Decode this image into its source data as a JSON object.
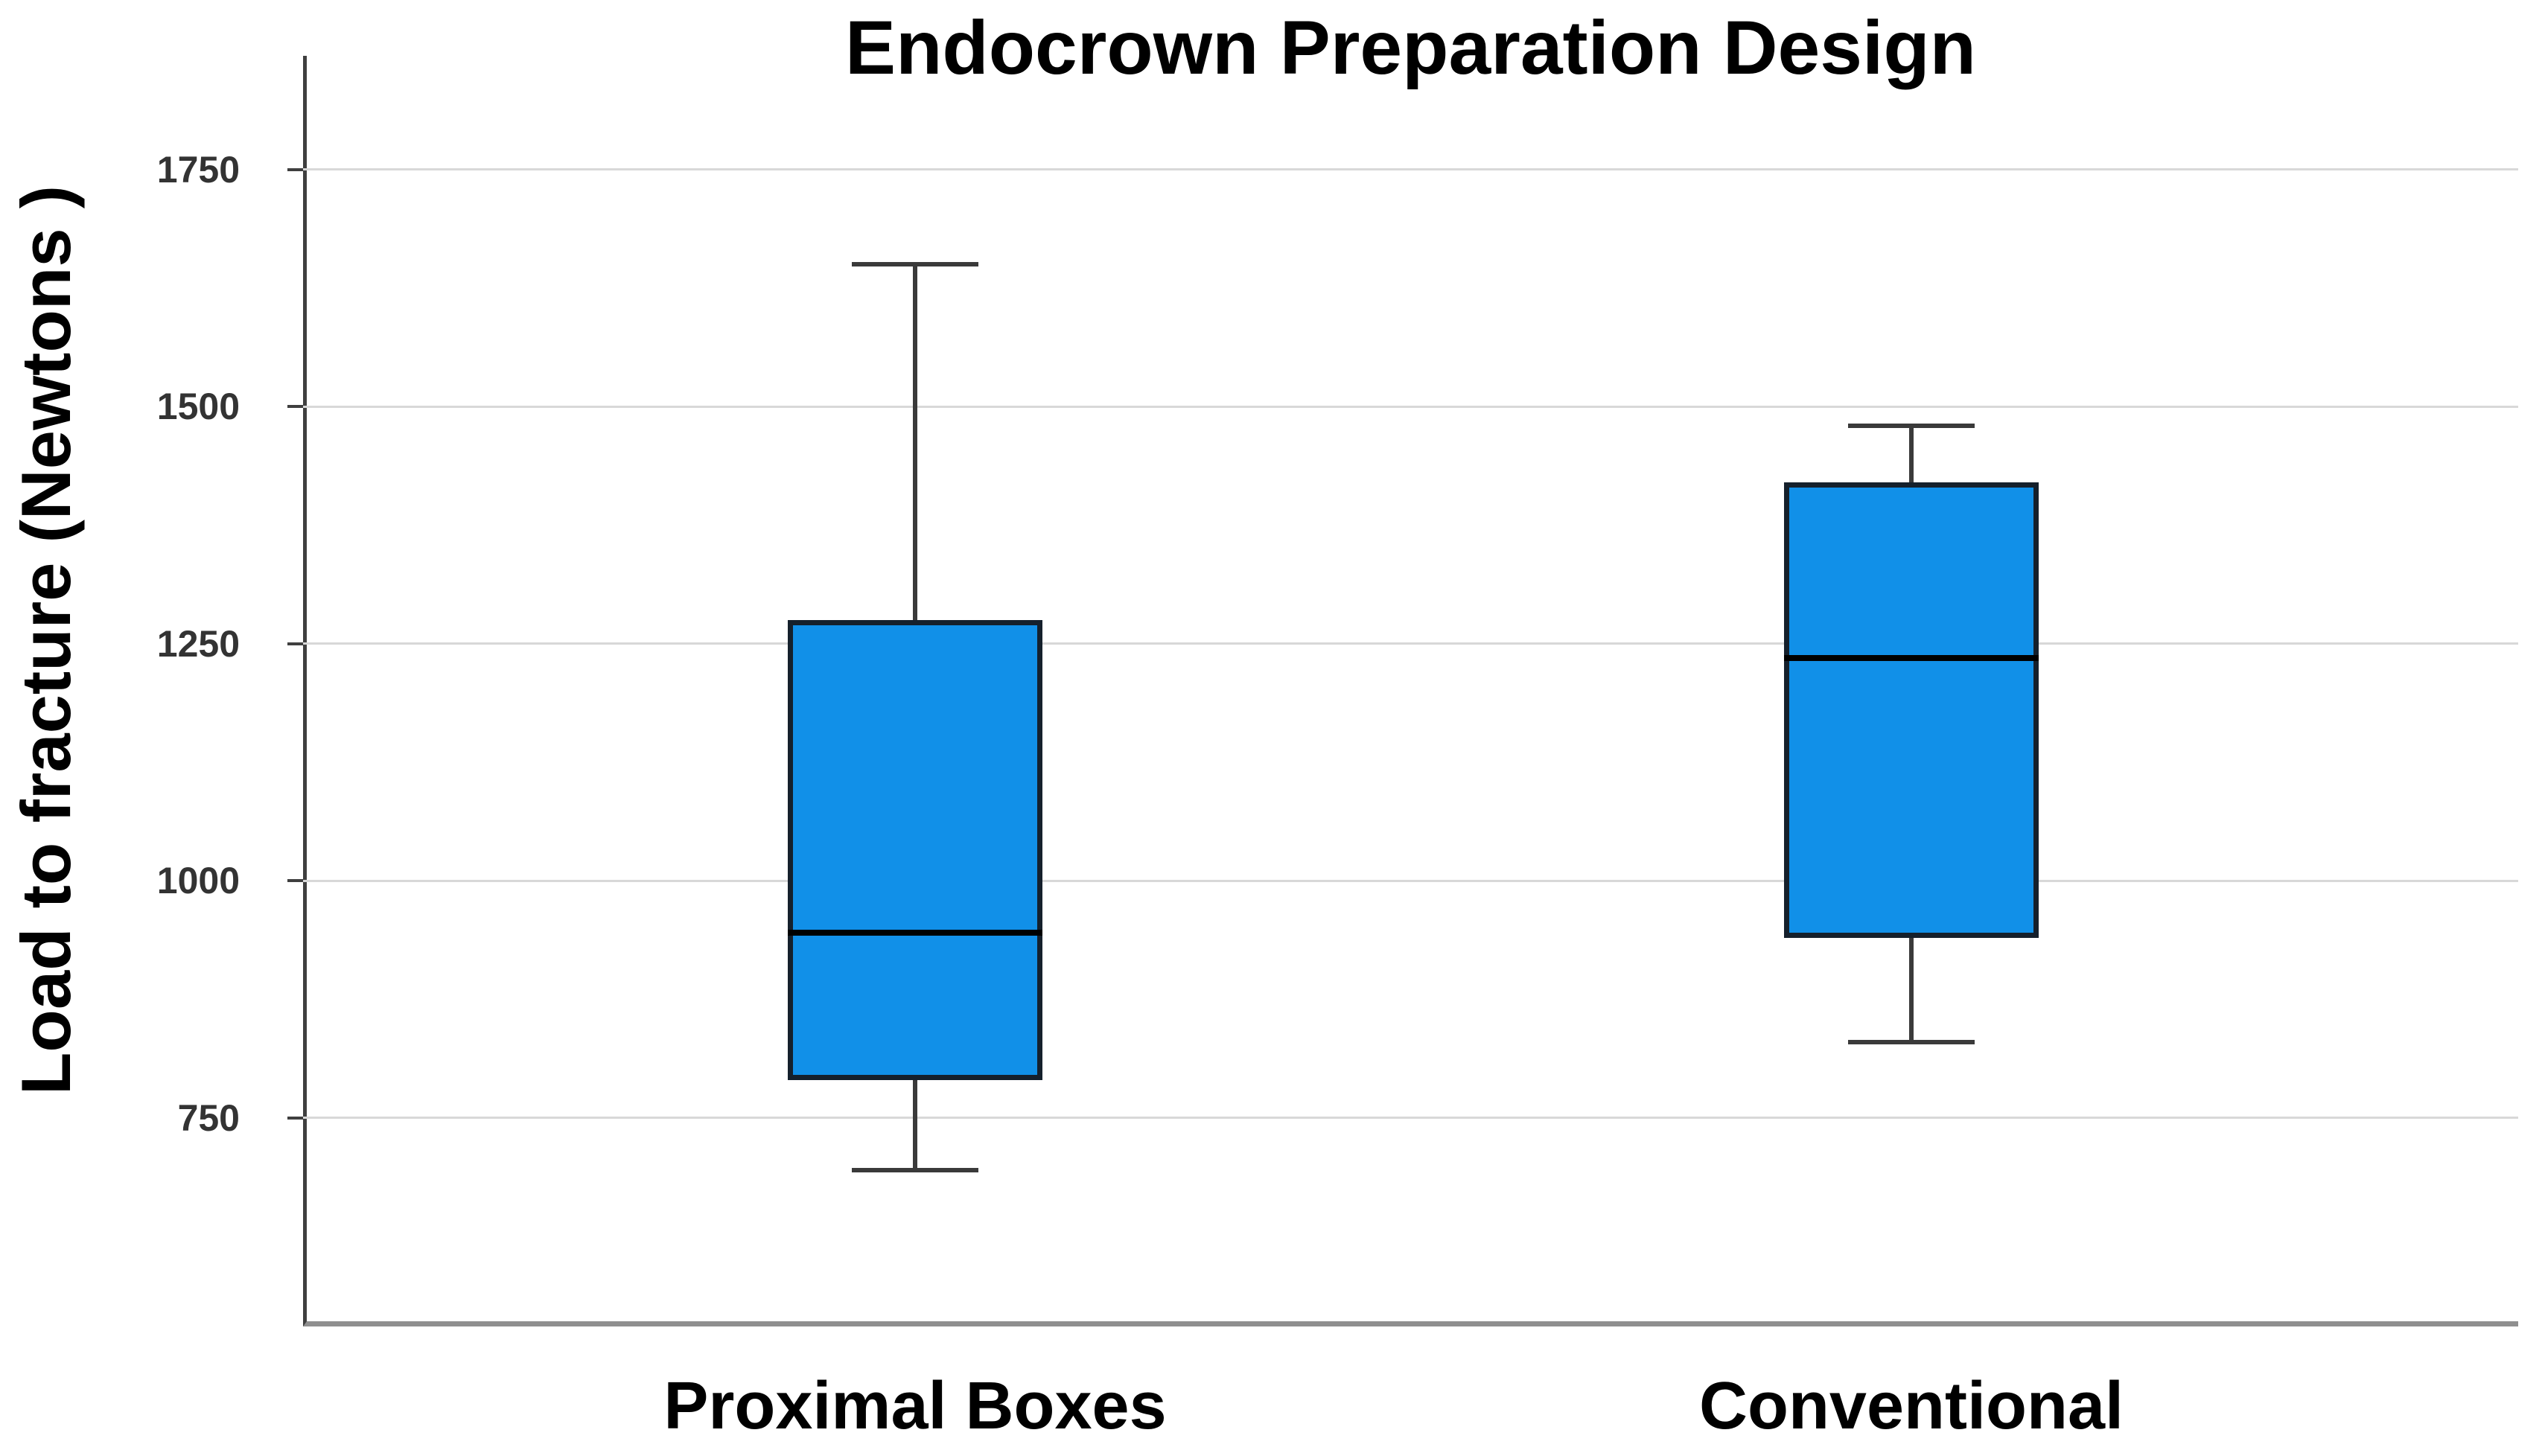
{
  "title": "Endocrown Preparation Design",
  "y_axis": {
    "label": "Load to fracture (Newtons )",
    "ticks": [
      1750,
      1500,
      1250,
      1000,
      750
    ]
  },
  "x_axis": {
    "categories": [
      "Proximal Boxes",
      "Conventional"
    ]
  },
  "chart_data": {
    "type": "boxplot",
    "title": "Endocrown Preparation Design",
    "xlabel": "",
    "ylabel": "Load to fracture (Newtons )",
    "categories": [
      "Proximal Boxes",
      "Conventional"
    ],
    "series": [
      {
        "name": "Proximal Boxes",
        "whisker_low": 695,
        "q1": 790,
        "median": 945,
        "q3": 1275,
        "whisker_high": 1650
      },
      {
        "name": "Conventional",
        "whisker_low": 830,
        "q1": 940,
        "median": 1235,
        "q3": 1420,
        "whisker_high": 1480
      }
    ],
    "yticks": [
      1750,
      1500,
      1250,
      1000,
      750
    ],
    "ylim": [
      530,
      1870
    ],
    "grid": true,
    "legend": false
  },
  "colors": {
    "background": "#FFFFFF",
    "text": "#000000",
    "tick_text": "#333333",
    "box_fill": "#1190E8",
    "box_border": "#15202C",
    "median": "#000000",
    "whisker": "#3A3A3A",
    "gridline": "#D8D8D8",
    "y_axis_line": "#3F3F3F",
    "x_axis_line": "#8F8F8F"
  }
}
